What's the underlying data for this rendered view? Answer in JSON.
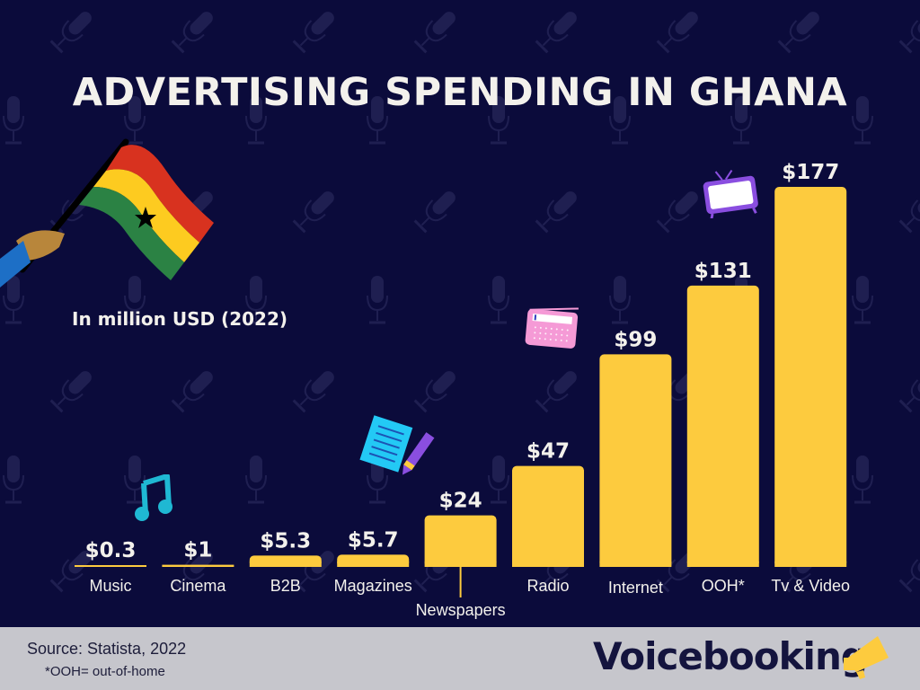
{
  "header": {
    "title": "ADVERTISING SPENDING IN GHANA",
    "subtitle": "In million USD (2022)"
  },
  "footer": {
    "source": "Source: Statista, 2022",
    "note": "*OOH= out-of-home",
    "brand": "Voicebooking"
  },
  "colors": {
    "background": "#0b0b3b",
    "bar": "#fdcb3e",
    "label_text": "#f3f1ec",
    "footer_bg": "#c6c6cc",
    "brand_text": "#14143e"
  },
  "icons": [
    "ghana-flag-icon",
    "music-note-icon",
    "notepad-pencil-icon",
    "radio-icon",
    "tv-icon",
    "megaphone-icon",
    "microphone-pattern-icon"
  ],
  "chart_data": {
    "type": "bar",
    "title": "ADVERTISING SPENDING IN GHANA",
    "subtitle": "In million USD (2022)",
    "xlabel": "",
    "ylabel": "",
    "categories": [
      "Music",
      "Cinema",
      "B2B",
      "Magazines",
      "Newspapers",
      "Radio",
      "Internet",
      "OOH*",
      "Tv & Video"
    ],
    "values": [
      0.3,
      1,
      5.3,
      5.7,
      24,
      47,
      99,
      131,
      177
    ],
    "data_labels": [
      "$0.3",
      "$1",
      "$5.3",
      "$5.7",
      "$24",
      "$47",
      "$99",
      "$131",
      "$177"
    ],
    "unit": "million USD",
    "ylim": [
      0,
      177
    ],
    "grid": false,
    "legend": "none"
  }
}
